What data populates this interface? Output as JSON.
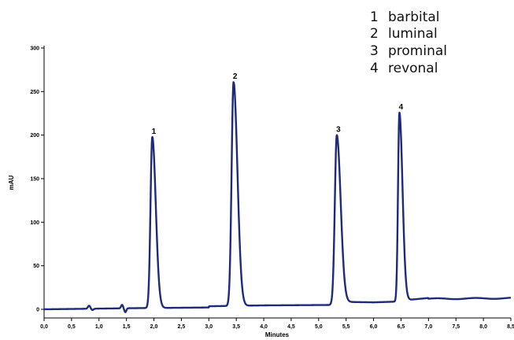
{
  "chart_data": {
    "type": "line",
    "title": "",
    "xlabel": "Minutes",
    "ylabel": "mAU",
    "xlim": [
      0,
      8.5
    ],
    "ylim": [
      -12,
      300
    ],
    "xticks": [
      0,
      0.5,
      1.0,
      1.5,
      2.0,
      2.5,
      3.0,
      3.5,
      4.0,
      4.5,
      5.0,
      5.5,
      6.0,
      6.5,
      7.0,
      7.5,
      8.0,
      8.5
    ],
    "xtick_labels": [
      "0,0",
      "0,5",
      "1,0",
      "1,5",
      "2,0",
      "2,5",
      "3,0",
      "3,5",
      "4,0",
      "4,5",
      "5,0",
      "5,5",
      "6,0",
      "6,5",
      "7,0",
      "7,5",
      "8,0",
      "8,5"
    ],
    "yticks": [
      0,
      50,
      100,
      150,
      200,
      250,
      300
    ],
    "ytick_labels": [
      "0",
      "50",
      "100",
      "150",
      "200",
      "250",
      "300"
    ],
    "grid": false,
    "series_color": "#1f2a78",
    "peaks": [
      {
        "label": "1",
        "name": "barbital",
        "rt": 1.97,
        "height": 198
      },
      {
        "label": "2",
        "name": "luminal",
        "rt": 3.45,
        "height": 261
      },
      {
        "label": "3",
        "name": "prominal",
        "rt": 5.33,
        "height": 200
      },
      {
        "label": "4",
        "name": "revonal",
        "rt": 6.47,
        "height": 226
      }
    ],
    "legend": [
      {
        "number": "1",
        "name": "barbital"
      },
      {
        "number": "2",
        "name": "luminal"
      },
      {
        "number": "3",
        "name": "prominal"
      },
      {
        "number": "4",
        "name": "revonal"
      }
    ],
    "legend_position": "top-right"
  }
}
